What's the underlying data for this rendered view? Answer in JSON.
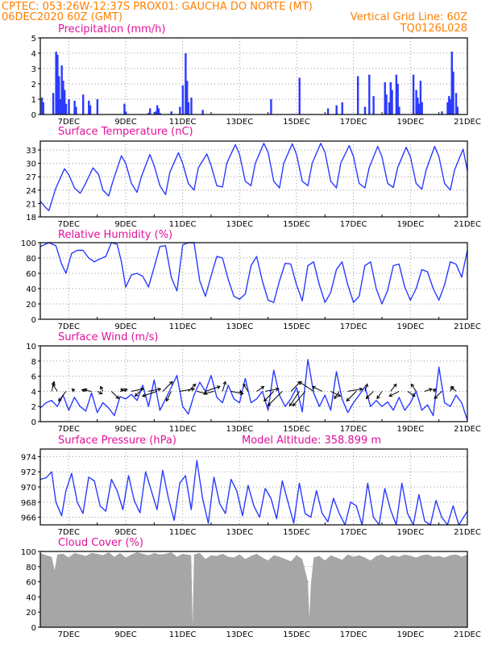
{
  "header": {
    "line1": "CPTEC:  053:26W-12:37S  PROX01: GAUCHA DO NORTE (MT)",
    "line2_left": "06DEC2020 60Z (GMT)",
    "line2_right": "Vertical Grid Line: 60Z",
    "line3_right": "TQ0126L028"
  },
  "x_axis": {
    "tick_labels": [
      "7DEC",
      "9DEC",
      "11DEC",
      "13DEC",
      "15DEC",
      "17DEC",
      "19DEC",
      "21DEC"
    ],
    "tick_days": [
      7,
      9,
      11,
      13,
      15,
      17,
      19,
      21
    ],
    "range_days": [
      6,
      21
    ]
  },
  "chart_data": [
    {
      "id": "precip",
      "type": "bar",
      "title": "Precipitation (mm/h)",
      "ylim": [
        0,
        5
      ],
      "yticks": [
        0,
        1,
        2,
        3,
        4,
        5
      ],
      "color": "#2b3bff",
      "x_unit": "day of December 2020",
      "x": [
        6.05,
        6.1,
        6.45,
        6.55,
        6.6,
        6.65,
        6.7,
        6.75,
        6.8,
        6.85,
        6.9,
        7.0,
        7.2,
        7.25,
        7.5,
        7.7,
        7.75,
        8.0,
        8.95,
        9.0,
        9.8,
        9.85,
        10.05,
        10.1,
        10.15,
        10.2,
        10.6,
        10.9,
        11.0,
        11.1,
        11.15,
        11.2,
        11.3,
        11.7,
        14.1,
        15.1,
        16.1,
        16.4,
        16.6,
        17.15,
        17.4,
        17.55,
        17.7,
        18.1,
        18.15,
        18.25,
        18.3,
        18.35,
        18.5,
        18.55,
        18.6,
        19.1,
        19.2,
        19.25,
        19.3,
        19.35,
        19.4,
        20.1,
        20.3,
        20.35,
        20.4,
        20.45,
        20.5,
        20.6,
        20.65
      ],
      "values": [
        1.1,
        0.8,
        1.4,
        4.1,
        3.9,
        2.5,
        1.0,
        3.2,
        2.2,
        1.6,
        0.7,
        1.0,
        0.9,
        0.5,
        1.3,
        0.9,
        0.6,
        1.0,
        0.7,
        0.2,
        0.1,
        0.4,
        0.2,
        0.6,
        0.4,
        0.1,
        0.2,
        0.5,
        1.9,
        4.0,
        2.2,
        0.8,
        1.1,
        0.3,
        1.0,
        2.4,
        0.4,
        0.6,
        0.8,
        2.5,
        0.5,
        2.6,
        1.2,
        2.1,
        1.3,
        0.8,
        2.1,
        1.6,
        2.6,
        2.0,
        0.5,
        2.6,
        1.6,
        1.1,
        0.7,
        2.2,
        0.8,
        0.2,
        0.8,
        1.2,
        1.0,
        4.1,
        2.8,
        1.4,
        0.5
      ]
    },
    {
      "id": "temp",
      "type": "line",
      "title": "Surface Temperature (nC)",
      "ylim": [
        18,
        35
      ],
      "yticks": [
        18,
        21,
        24,
        27,
        30,
        33
      ],
      "color": "#2b3bff",
      "x_unit": "day of December 2020",
      "x": [
        6.0,
        6.2,
        6.3,
        6.55,
        6.85,
        7.0,
        7.2,
        7.4,
        7.55,
        7.85,
        8.05,
        8.2,
        8.4,
        8.55,
        8.85,
        9.0,
        9.2,
        9.4,
        9.55,
        9.85,
        10.0,
        10.2,
        10.4,
        10.55,
        10.85,
        11.0,
        11.2,
        11.4,
        11.55,
        11.85,
        12.0,
        12.2,
        12.4,
        12.55,
        12.85,
        13.0,
        13.2,
        13.4,
        13.55,
        13.85,
        14.0,
        14.2,
        14.4,
        14.55,
        14.85,
        15.0,
        15.2,
        15.4,
        15.55,
        15.85,
        16.0,
        16.2,
        16.4,
        16.55,
        16.85,
        17.0,
        17.2,
        17.4,
        17.55,
        17.85,
        18.0,
        18.2,
        18.4,
        18.55,
        18.85,
        19.0,
        19.2,
        19.4,
        19.55,
        19.85,
        20.0,
        20.2,
        20.4,
        20.55,
        20.85,
        21.0
      ],
      "values": [
        21.5,
        20,
        19.4,
        24.5,
        28.8,
        27.5,
        24.5,
        23.3,
        25,
        29,
        27.5,
        24,
        22.7,
        26,
        31.7,
        30,
        25.5,
        23.5,
        27,
        32,
        29.5,
        25,
        23,
        28,
        32.4,
        30,
        25.5,
        24,
        29,
        32.1,
        29.5,
        25,
        24.7,
        30,
        34.2,
        32,
        26,
        25,
        30,
        34.5,
        32.5,
        26,
        24.5,
        30,
        34.4,
        32,
        26,
        25,
        30,
        34.5,
        32.5,
        26,
        24.5,
        30,
        34.0,
        31.5,
        25.5,
        24.5,
        29,
        33.8,
        31.5,
        25.5,
        24.6,
        29,
        33.6,
        31.5,
        25.5,
        24.2,
        28.5,
        33.8,
        31.5,
        25.5,
        24,
        28.5,
        33.2,
        28.3
      ]
    },
    {
      "id": "rh",
      "type": "line",
      "title": "Relative Humidity (%)",
      "ylim": [
        0,
        100
      ],
      "yticks": [
        0,
        20,
        40,
        60,
        80,
        100
      ],
      "color": "#2b3bff",
      "x_unit": "day of December 2020",
      "x": [
        6.0,
        6.3,
        6.55,
        6.75,
        6.9,
        7.1,
        7.3,
        7.5,
        7.7,
        7.9,
        8.05,
        8.3,
        8.5,
        8.7,
        8.85,
        9.0,
        9.2,
        9.4,
        9.6,
        9.8,
        10.0,
        10.2,
        10.4,
        10.6,
        10.8,
        11.0,
        11.2,
        11.4,
        11.6,
        11.8,
        12.0,
        12.2,
        12.4,
        12.6,
        12.8,
        13.0,
        13.2,
        13.4,
        13.6,
        13.8,
        14.0,
        14.2,
        14.4,
        14.6,
        14.8,
        15.0,
        15.2,
        15.4,
        15.6,
        15.8,
        16.0,
        16.2,
        16.4,
        16.6,
        16.8,
        17.0,
        17.2,
        17.4,
        17.6,
        17.8,
        18.0,
        18.2,
        18.4,
        18.6,
        18.8,
        19.0,
        19.2,
        19.4,
        19.6,
        19.8,
        20.0,
        20.2,
        20.4,
        20.6,
        20.8,
        21.0
      ],
      "values": [
        95,
        100,
        96,
        72,
        60,
        86,
        90,
        90,
        80,
        75,
        78,
        82,
        100,
        98,
        75,
        42,
        58,
        60,
        56,
        42,
        68,
        95,
        96,
        55,
        37,
        97,
        100,
        100,
        50,
        30,
        57,
        82,
        80,
        52,
        30,
        26,
        33,
        70,
        82,
        50,
        25,
        22,
        50,
        73,
        72,
        45,
        24,
        70,
        75,
        45,
        22,
        35,
        65,
        75,
        45,
        22,
        30,
        70,
        75,
        40,
        20,
        38,
        70,
        72,
        42,
        25,
        40,
        65,
        62,
        40,
        25,
        45,
        75,
        72,
        55,
        90
      ]
    },
    {
      "id": "wind",
      "type": "line",
      "title": "Surface Wind (m/s)",
      "ylim": [
        0,
        10
      ],
      "yticks": [
        0,
        2,
        4,
        6,
        8,
        10
      ],
      "color": "#2b3bff",
      "x_unit": "day of December 2020",
      "x": [
        6.0,
        6.2,
        6.4,
        6.6,
        6.8,
        7.0,
        7.2,
        7.4,
        7.6,
        7.8,
        8.0,
        8.2,
        8.4,
        8.6,
        8.8,
        9.0,
        9.2,
        9.4,
        9.6,
        9.8,
        10.0,
        10.2,
        10.4,
        10.6,
        10.8,
        11.0,
        11.2,
        11.4,
        11.6,
        11.8,
        12.0,
        12.2,
        12.4,
        12.6,
        12.8,
        13.0,
        13.2,
        13.4,
        13.6,
        13.8,
        14.0,
        14.2,
        14.4,
        14.6,
        14.8,
        15.0,
        15.2,
        15.4,
        15.6,
        15.8,
        16.0,
        16.2,
        16.4,
        16.6,
        16.8,
        17.0,
        17.2,
        17.4,
        17.6,
        17.8,
        18.0,
        18.2,
        18.4,
        18.6,
        18.8,
        19.0,
        19.2,
        19.4,
        19.6,
        19.8,
        20.0,
        20.2,
        20.4,
        20.6,
        20.8,
        21.0
      ],
      "values": [
        1.8,
        2.5,
        2.8,
        2.0,
        3.5,
        1.5,
        3.2,
        2.0,
        1.4,
        3.8,
        1.2,
        2.5,
        1.8,
        0.8,
        3.3,
        3.0,
        3.6,
        2.8,
        4.8,
        2.0,
        5.5,
        1.5,
        3.0,
        4.5,
        6.1,
        2.0,
        1.0,
        3.5,
        5.2,
        4.0,
        6.1,
        3.2,
        2.5,
        4.8,
        3.0,
        2.5,
        5.7,
        2.5,
        3.0,
        4.0,
        1.5,
        6.8,
        3.5,
        2.0,
        3.0,
        4.5,
        1.3,
        8.2,
        3.8,
        2.0,
        3.5,
        1.5,
        6.6,
        3.0,
        1.2,
        2.5,
        3.5,
        4.6,
        2.0,
        2.8,
        2.0,
        2.6,
        1.5,
        3.2,
        1.5,
        2.5,
        4.0,
        1.5,
        2.2,
        0.8,
        7.2,
        2.5,
        2.0,
        3.5,
        2.5,
        0.2
      ],
      "arrows_x": [
        6.4,
        6.6,
        6.9,
        7.2,
        7.5,
        7.8,
        8.0,
        8.2,
        8.5,
        8.8,
        9.0,
        9.2,
        9.5,
        9.8,
        10.1,
        10.3,
        10.6,
        10.9,
        11.2,
        11.5,
        11.8,
        12.1,
        12.4,
        12.7,
        13.0,
        13.3,
        13.6,
        13.9,
        14.2,
        14.5,
        14.8,
        15.1,
        15.3,
        15.6,
        15.9,
        16.2,
        16.5,
        16.8,
        17.1,
        17.4,
        17.7,
        18.0,
        18.3,
        18.6,
        18.9,
        19.2,
        19.5,
        19.8,
        20.1,
        20.4,
        20.6
      ],
      "arrows_u": [
        0.5,
        -1,
        -1.5,
        -0.5,
        0.8,
        -2,
        1,
        -0.5,
        1.5,
        1.5,
        -1,
        2.5,
        -1,
        2.5,
        -3,
        2,
        -1,
        3,
        1.5,
        2,
        3,
        -2,
        0.6,
        2.5,
        0.5,
        -1,
        1.5,
        2.8,
        -2,
        -3,
        2,
        -2,
        -2.5,
        -3,
        -2,
        2,
        -1,
        3,
        -2,
        0.5,
        -1.5,
        -1,
        1.2,
        -2,
        1.5,
        -1,
        1.5,
        0.5,
        -1.5,
        0.5,
        -1
      ],
      "arrows_v": [
        2,
        1.5,
        -2,
        0.5,
        0.5,
        0.3,
        -0.5,
        1,
        -1.5,
        0.4,
        0.5,
        0.5,
        -1,
        0.5,
        -1,
        2,
        -2,
        0.5,
        1.5,
        -0.5,
        1,
        -0.5,
        2,
        -0.5,
        -0.2,
        1.5,
        1,
        0.5,
        -2,
        -3,
        2,
        -3,
        -3,
        2,
        1,
        -1,
        -1.5,
        0.5,
        -2,
        1.5,
        -1.5,
        -1.5,
        1.5,
        -1,
        -1,
        1.5,
        0.5,
        0.5,
        -1.5,
        1,
        1
      ]
    },
    {
      "id": "pressure",
      "type": "line",
      "title": "Surface Pressure (hPa)",
      "annotation": "Model Altitude: 358.899 m",
      "ylim": [
        965,
        975
      ],
      "yticks": [
        966,
        968,
        970,
        972,
        974
      ],
      "color": "#2b3bff",
      "x_unit": "day of December 2020",
      "x": [
        6.0,
        6.2,
        6.4,
        6.55,
        6.75,
        6.9,
        7.1,
        7.3,
        7.5,
        7.7,
        7.9,
        8.1,
        8.3,
        8.5,
        8.7,
        8.9,
        9.1,
        9.3,
        9.5,
        9.7,
        9.9,
        10.1,
        10.3,
        10.5,
        10.7,
        10.9,
        11.1,
        11.3,
        11.5,
        11.7,
        11.9,
        12.1,
        12.3,
        12.5,
        12.7,
        12.9,
        13.1,
        13.3,
        13.5,
        13.7,
        13.9,
        14.1,
        14.3,
        14.5,
        14.7,
        14.9,
        15.1,
        15.3,
        15.5,
        15.7,
        15.9,
        16.1,
        16.3,
        16.5,
        16.7,
        16.9,
        17.1,
        17.3,
        17.5,
        17.7,
        17.9,
        18.1,
        18.3,
        18.5,
        18.7,
        18.9,
        19.1,
        19.3,
        19.5,
        19.7,
        19.9,
        20.1,
        20.3,
        20.5,
        20.7,
        21.0
      ],
      "values": [
        971.0,
        971.2,
        972.0,
        968.0,
        966.2,
        969.5,
        971.8,
        968.0,
        966.5,
        971.3,
        970.8,
        967.5,
        966.8,
        971.0,
        969.5,
        967.0,
        971.5,
        968.2,
        966.6,
        972.0,
        969.5,
        967.0,
        972.2,
        968.5,
        965.6,
        970.5,
        971.5,
        967.0,
        973.5,
        968.5,
        965.2,
        971.3,
        967.8,
        966.5,
        971.0,
        969.5,
        966.2,
        970.2,
        967.5,
        966.0,
        969.8,
        968.5,
        965.8,
        970.8,
        968.0,
        965.2,
        970.5,
        966.5,
        966.0,
        969.5,
        966.5,
        965.4,
        968.5,
        966.5,
        964.5,
        968.0,
        967.5,
        965.0,
        970.5,
        966.0,
        964.5,
        969.8,
        967.0,
        964.5,
        970.5,
        966.5,
        964.2,
        969.0,
        965.5,
        964.0,
        968.2,
        966.0,
        964.2,
        967.5,
        964.0,
        966.8
      ]
    },
    {
      "id": "cloud",
      "type": "area",
      "title": "Cloud Cover (%)",
      "ylim": [
        0,
        100
      ],
      "yticks": [
        0,
        20,
        40,
        60,
        80,
        100
      ],
      "color": "#a6a6a6",
      "x_unit": "day of December 2020",
      "x": [
        6.0,
        6.2,
        6.4,
        6.5,
        6.6,
        6.8,
        7.0,
        7.2,
        7.4,
        7.6,
        7.8,
        8.0,
        8.2,
        8.4,
        8.6,
        8.8,
        9.0,
        9.2,
        9.4,
        9.6,
        9.8,
        10.0,
        10.2,
        10.4,
        10.6,
        10.8,
        11.0,
        11.3,
        11.35,
        11.4,
        11.6,
        11.8,
        12.0,
        12.2,
        12.4,
        12.6,
        12.8,
        13.0,
        13.2,
        13.4,
        13.6,
        13.8,
        14.0,
        14.2,
        14.4,
        14.6,
        14.8,
        15.0,
        15.2,
        15.4,
        15.45,
        15.5,
        15.6,
        15.8,
        16.0,
        16.2,
        16.4,
        16.6,
        16.8,
        17.0,
        17.2,
        17.4,
        17.6,
        17.8,
        18.0,
        18.2,
        18.4,
        18.6,
        18.8,
        19.0,
        19.2,
        19.4,
        19.6,
        19.8,
        20.0,
        20.2,
        20.4,
        20.6,
        20.8,
        21.0
      ],
      "values": [
        98,
        95,
        93,
        75,
        96,
        97,
        92,
        98,
        96,
        94,
        98,
        97,
        95,
        99,
        93,
        98,
        92,
        96,
        99,
        97,
        95,
        98,
        96,
        97,
        99,
        93,
        97,
        95,
        2,
        96,
        98,
        90,
        95,
        94,
        97,
        93,
        92,
        96,
        90,
        94,
        97,
        92,
        88,
        95,
        93,
        90,
        87,
        95,
        90,
        60,
        12,
        55,
        92,
        94,
        88,
        95,
        92,
        89,
        96,
        93,
        95,
        92,
        88,
        94,
        96,
        92,
        95,
        93,
        96,
        94,
        92,
        95,
        96,
        93,
        94,
        92,
        95,
        96,
        93,
        96
      ]
    }
  ]
}
